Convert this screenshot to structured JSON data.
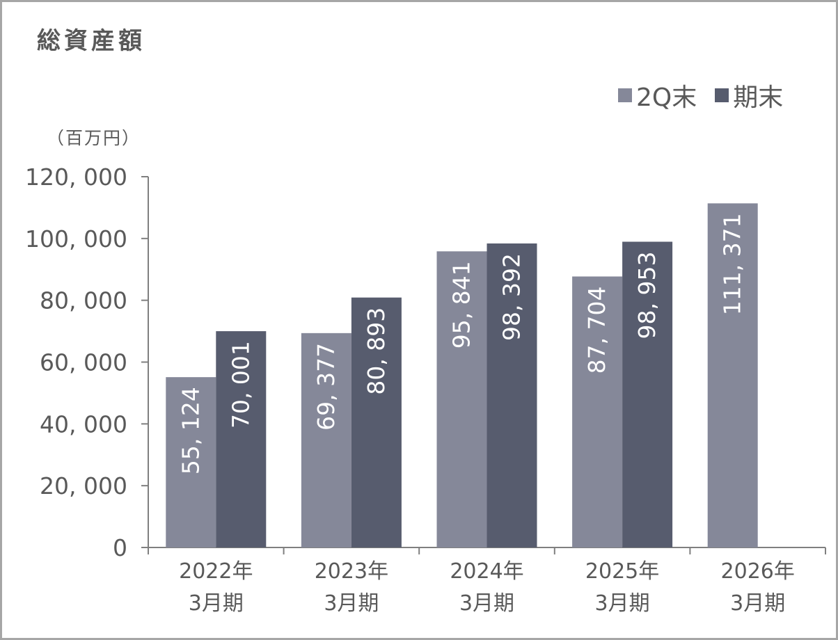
{
  "chart_data": {
    "type": "bar",
    "title": "総資産額",
    "unit_label": "（百万円）",
    "categories": [
      {
        "line1": "2022年",
        "line2": "3月期"
      },
      {
        "line1": "2023年",
        "line2": "3月期"
      },
      {
        "line1": "2024年",
        "line2": "3月期"
      },
      {
        "line1": "2025年",
        "line2": "3月期"
      },
      {
        "line1": "2026年",
        "line2": "3月期"
      }
    ],
    "series": [
      {
        "name": "2Q末",
        "color": "#858899",
        "values": [
          55124,
          69377,
          95841,
          87704,
          111371
        ],
        "labels": [
          "55, 124",
          "69, 377",
          "95, 841",
          "87, 704",
          "111, 371"
        ]
      },
      {
        "name": "期末",
        "color": "#575c6e",
        "values": [
          70001,
          80893,
          98392,
          98953,
          null
        ],
        "labels": [
          "70, 001",
          "80, 893",
          "98, 392",
          "98, 953",
          null
        ]
      }
    ],
    "ylim": [
      0,
      120000
    ],
    "yticks": [
      0,
      20000,
      40000,
      60000,
      80000,
      100000,
      120000
    ],
    "ytick_labels": [
      "0",
      "20, 000",
      "40, 000",
      "60, 000",
      "80, 000",
      "100, 000",
      "120, 000"
    ],
    "legend_position": "top-right",
    "grid": false
  }
}
